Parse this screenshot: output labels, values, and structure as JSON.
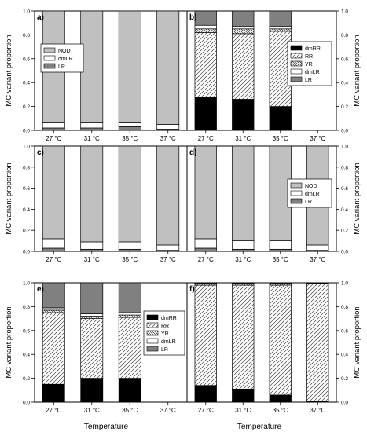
{
  "chart_data": [
    {
      "type": "bar",
      "panel": "a)",
      "categories": [
        "27 °C",
        "31 °C",
        "35 °C",
        "37 °C"
      ],
      "ylabel": "MC variant proportion",
      "xlabel": "",
      "ylim": [
        0,
        1.0
      ],
      "yticks": [
        "0.0",
        "0.2",
        "0.4",
        "0.6",
        "0.8",
        "1.0"
      ],
      "legend_position": "upper-left",
      "series": [
        {
          "name": "LR",
          "values": [
            0.02,
            0.02,
            0.03,
            0.01
          ]
        },
        {
          "name": "dmLR",
          "values": [
            0.05,
            0.05,
            0.04,
            0.04
          ]
        },
        {
          "name": "NOD",
          "values": [
            0.93,
            0.93,
            0.93,
            0.95
          ]
        }
      ]
    },
    {
      "type": "bar",
      "panel": "b)",
      "categories": [
        "27 °C",
        "31 °C",
        "35 °C",
        "37 °C"
      ],
      "ylabel": "MC variant proportion",
      "xlabel": "",
      "ylim": [
        0,
        1.0
      ],
      "yticks": [
        "0.0",
        "0.2",
        "0.4",
        "0.6",
        "0.8",
        "1.0"
      ],
      "legend_position": "right",
      "series": [
        {
          "name": "dmRR",
          "values": [
            0.28,
            0.26,
            0.2,
            0
          ]
        },
        {
          "name": "RR",
          "values": [
            0.54,
            0.55,
            0.63,
            0
          ]
        },
        {
          "name": "YR",
          "values": [
            0.03,
            0.04,
            0.02,
            0
          ]
        },
        {
          "name": "dmLR",
          "values": [
            0.03,
            0.02,
            0.02,
            0
          ]
        },
        {
          "name": "LR",
          "values": [
            0.12,
            0.13,
            0.13,
            0
          ]
        }
      ]
    },
    {
      "type": "bar",
      "panel": "c)",
      "categories": [
        "27 °C",
        "31 °C",
        "35 °C",
        "37 °C"
      ],
      "ylabel": "MC variant proportion",
      "xlabel": "",
      "ylim": [
        0,
        1.0
      ],
      "yticks": [
        "0.0",
        "0.2",
        "0.4",
        "0.6",
        "0.8",
        "1.0"
      ],
      "legend_position": "none",
      "series": [
        {
          "name": "LR",
          "values": [
            0.03,
            0.02,
            0.02,
            0.01
          ]
        },
        {
          "name": "dmLR",
          "values": [
            0.09,
            0.07,
            0.07,
            0.05
          ]
        },
        {
          "name": "NOD",
          "values": [
            0.88,
            0.91,
            0.91,
            0.94
          ]
        }
      ]
    },
    {
      "type": "bar",
      "panel": "d)",
      "categories": [
        "27 °C",
        "31 °C",
        "35 °C",
        "37 °C"
      ],
      "ylabel": "MC variant proportion",
      "xlabel": "",
      "ylim": [
        0,
        1.0
      ],
      "yticks": [
        "0.0",
        "0.2",
        "0.4",
        "0.6",
        "0.8",
        "1.0"
      ],
      "legend_position": "right",
      "series": [
        {
          "name": "LR",
          "values": [
            0.03,
            0.02,
            0.02,
            0.01
          ]
        },
        {
          "name": "dmLR",
          "values": [
            0.09,
            0.08,
            0.08,
            0.05
          ]
        },
        {
          "name": "NOD",
          "values": [
            0.88,
            0.9,
            0.9,
            0.94
          ]
        }
      ]
    },
    {
      "type": "bar",
      "panel": "e)",
      "categories": [
        "27 °C",
        "31 °C",
        "35 °C",
        "37 °C"
      ],
      "ylabel": "MC variant proportion",
      "xlabel": "Temperature",
      "ylim": [
        0,
        1.0
      ],
      "yticks": [
        "0.0",
        "0.2",
        "0.4",
        "0.6",
        "0.8",
        "1.0"
      ],
      "legend_position": "right",
      "series": [
        {
          "name": "dmRR",
          "values": [
            0.15,
            0.2,
            0.2,
            0
          ]
        },
        {
          "name": "RR",
          "values": [
            0.6,
            0.5,
            0.51,
            0
          ]
        },
        {
          "name": "YR",
          "values": [
            0.02,
            0.02,
            0.02,
            0
          ]
        },
        {
          "name": "dmLR",
          "values": [
            0.02,
            0.02,
            0.02,
            0
          ]
        },
        {
          "name": "LR",
          "values": [
            0.21,
            0.26,
            0.25,
            0
          ]
        }
      ]
    },
    {
      "type": "bar",
      "panel": "f)",
      "categories": [
        "27 °C",
        "31 °C",
        "35 °C",
        "37 °C"
      ],
      "ylabel": "MC variant proportion",
      "xlabel": "Temperature",
      "ylim": [
        0,
        1.0
      ],
      "yticks": [
        "0.0",
        "0.2",
        "0.4",
        "0.6",
        "0.8",
        "1.0"
      ],
      "legend_position": "none",
      "series": [
        {
          "name": "dmRR",
          "values": [
            0.14,
            0.11,
            0.06,
            0.01
          ]
        },
        {
          "name": "RR",
          "values": [
            0.84,
            0.87,
            0.92,
            0.98
          ]
        },
        {
          "name": "YR",
          "values": [
            0.01,
            0.01,
            0.01,
            0.005
          ]
        },
        {
          "name": "dmLR",
          "values": [
            0.005,
            0.005,
            0.005,
            0.003
          ]
        },
        {
          "name": "LR",
          "values": [
            0.005,
            0.005,
            0.005,
            0.002
          ]
        }
      ]
    }
  ],
  "colors": {
    "LR": "#808080",
    "dmLR": "#ffffff",
    "NOD": "#c0c0c0",
    "dmRR": "#000000",
    "RR": "hatch-forward",
    "YR": "hatch-back-dense"
  }
}
